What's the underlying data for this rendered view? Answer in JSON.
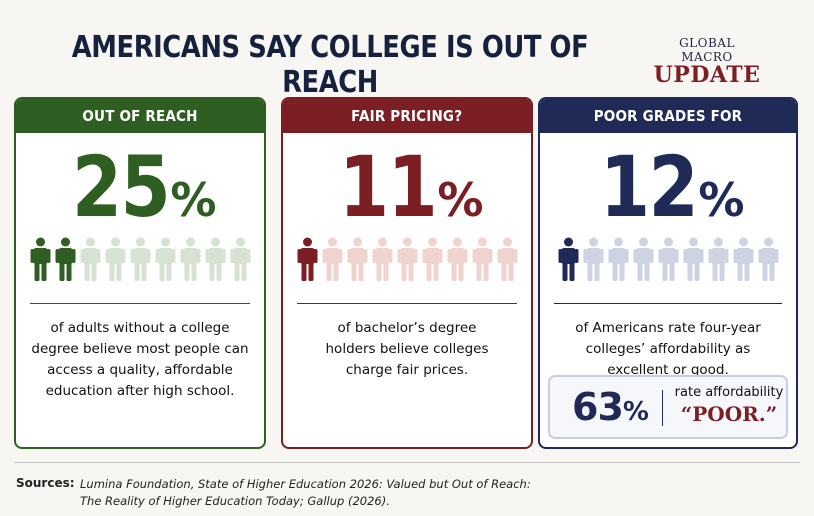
{
  "title": "AMERICANS SAY COLLEGE IS OUT OF REACH",
  "brand": {
    "line1": "GLOBAL MACRO",
    "line2": "UPDATE"
  },
  "colors": {
    "green": "#2f5e22",
    "red": "#7b1f24",
    "navy": "#1f2a57"
  },
  "cards": [
    {
      "header": "OUT OF REACH",
      "number": "25",
      "percent_sign": "%",
      "people_total": 9,
      "people_filled": 2,
      "fill": "#2f5e22",
      "faded": "#d6e2d2",
      "description": "of adults without a college degree believe most people can access a quality, affordable education after high school."
    },
    {
      "header": "FAIR PRICING?",
      "number": "11",
      "percent_sign": "%",
      "people_total": 9,
      "people_filled": 1,
      "fill": "#7b1f24",
      "faded": "#f0d2cf",
      "description": "of bachelor’s degree holders believe colleges charge fair prices."
    },
    {
      "header": "POOR GRADES FOR AFFORDABILITY",
      "number": "12",
      "percent_sign": "%",
      "people_total": 9,
      "people_filled": 1,
      "fill": "#1f2a57",
      "faded": "#cdd3e2",
      "description": "of Americans rate four-year colleges’ affordability as excellent or good.",
      "sub": {
        "number": "63",
        "percent_sign": "%",
        "text": "rate affordability",
        "emphasis": "“POOR.”"
      }
    }
  ],
  "sources": {
    "label": "Sources:",
    "line1": "Lumina Foundation, State of Higher Education 2026: Valued but Out of Reach:",
    "line2": "The Reality of Higher Education Today; Gallup (2026)."
  }
}
